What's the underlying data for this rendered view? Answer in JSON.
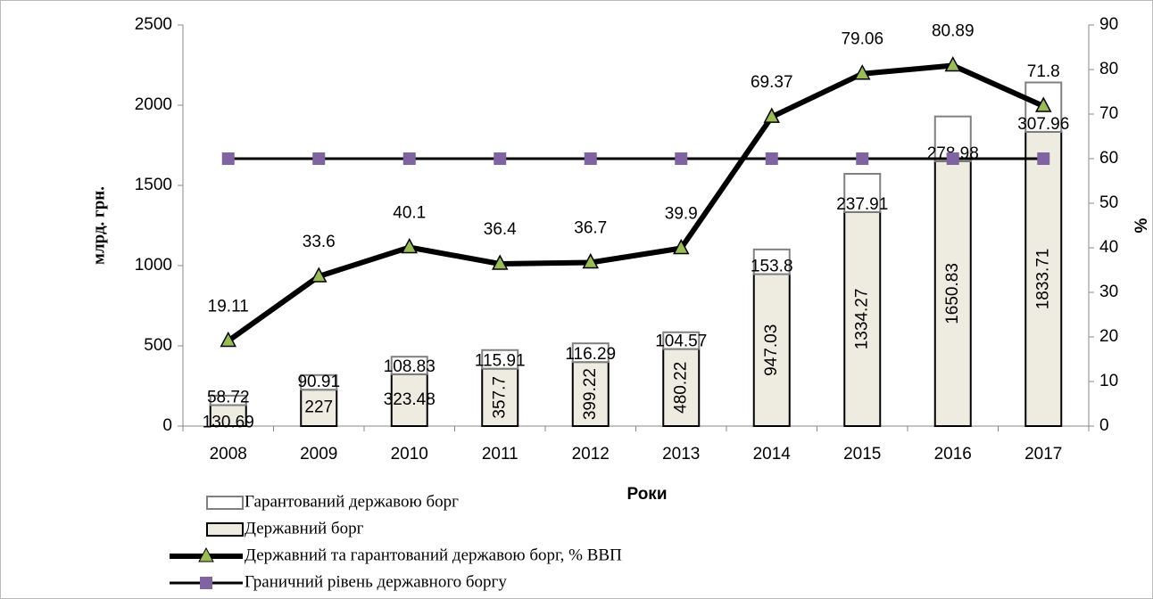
{
  "chart_data": {
    "type": "bar",
    "x_label": "Роки",
    "y_label": "млрд. грн.",
    "y2_label": "%",
    "categories": [
      "2008",
      "2009",
      "2010",
      "2011",
      "2012",
      "2013",
      "2014",
      "2015",
      "2016",
      "2017"
    ],
    "series": [
      {
        "name": "Гарантований державою борг",
        "type": "bar",
        "color": "#ffffff",
        "stroke": "#808080",
        "values": [
          58.72,
          90.91,
          108.83,
          115.91,
          116.29,
          104.57,
          153.8,
          237.91,
          278.98,
          307.96
        ]
      },
      {
        "name": "Державний борг",
        "type": "bar",
        "color": "#eeece1",
        "stroke": "#000000",
        "values": [
          130.69,
          227,
          323.48,
          357.7,
          399.22,
          480.22,
          947.03,
          1334.27,
          1650.83,
          1833.71
        ]
      },
      {
        "name": "Державний та гарантований державою борг, % ВВП",
        "type": "line",
        "axis": "y2",
        "color": "#000000",
        "marker": "triangle",
        "marker_color": "#9bbb59",
        "values": [
          19.11,
          33.6,
          40.1,
          36.4,
          36.7,
          39.9,
          69.37,
          79.06,
          80.89,
          71.8
        ]
      },
      {
        "name": "Граничний рівень державного боргу",
        "type": "line",
        "axis": "y2",
        "color": "#000000",
        "marker": "square",
        "marker_color": "#8064a2",
        "values": [
          60,
          60,
          60,
          60,
          60,
          60,
          60,
          60,
          60,
          60
        ]
      }
    ],
    "ylim": [
      0,
      2500
    ],
    "yticks": [
      0,
      500,
      1000,
      1500,
      2000,
      2500
    ],
    "y2lim": [
      0,
      90
    ],
    "y2ticks": [
      0,
      10,
      20,
      30,
      40,
      50,
      60,
      70,
      80,
      90
    ],
    "grid": false,
    "legend": "bottom-left"
  }
}
